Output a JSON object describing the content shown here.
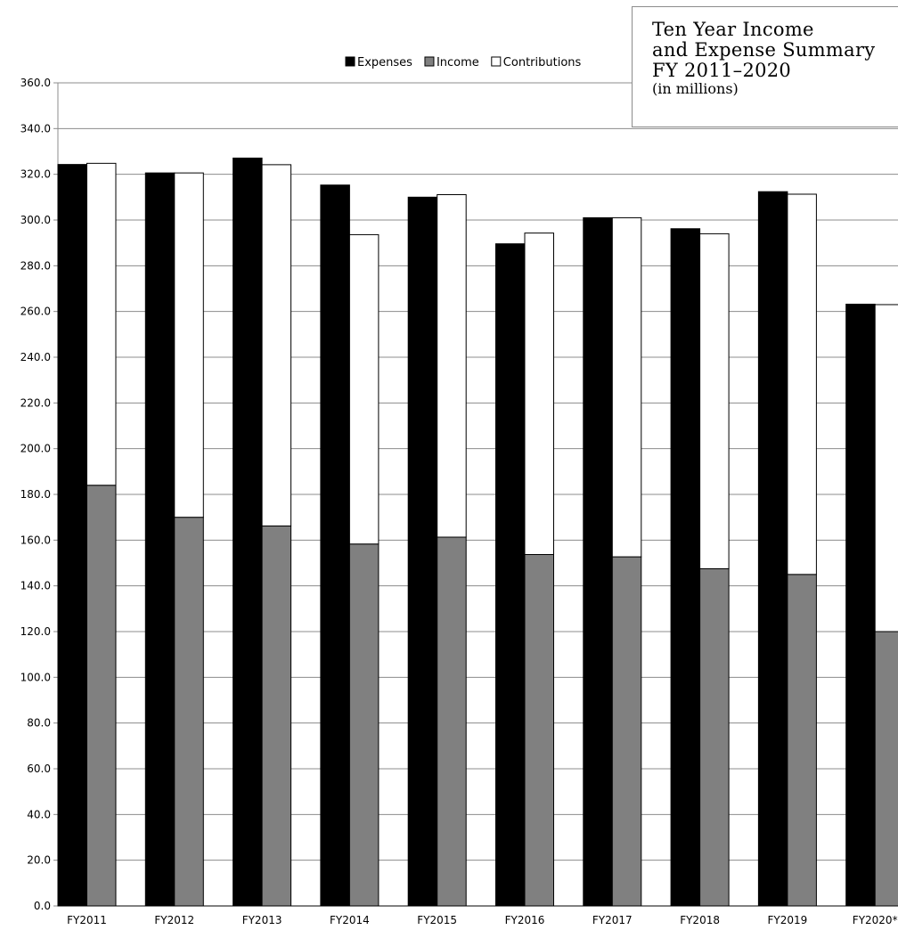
{
  "chart_data": {
    "type": "bar",
    "title": [
      "Ten Year Income",
      "and Expense Summary",
      "FY 2011–2020"
    ],
    "subtitle": "(in millions)",
    "categories": [
      "FY2011",
      "FY2012",
      "FY2013",
      "FY2014",
      "FY2015",
      "FY2016",
      "FY2017",
      "FY2018",
      "FY2019",
      "FY2020*"
    ],
    "series": [
      {
        "name": "Expenses",
        "color": "#000000",
        "stack": "a",
        "values": [
          324.3,
          320.6,
          327.1,
          315.3,
          310.0,
          289.6,
          301.0,
          296.2,
          312.4,
          263.2
        ]
      },
      {
        "name": "Income",
        "color": "#808080",
        "stack": "b",
        "values": [
          184.0,
          170.0,
          166.2,
          158.3,
          161.3,
          153.7,
          152.7,
          147.5,
          145.0,
          120.0
        ]
      },
      {
        "name": "Contributions",
        "color": "#ffffff",
        "stack": "b",
        "values": [
          140.8,
          150.6,
          158.0,
          135.3,
          149.8,
          140.6,
          148.3,
          146.5,
          166.3,
          143.0
        ]
      }
    ],
    "ylim": [
      0,
      360
    ],
    "y_ticks": [
      "0.0",
      "20.0",
      "40.0",
      "60.0",
      "80.0",
      "100.0",
      "120.0",
      "140.0",
      "160.0",
      "180.0",
      "200.0",
      "220.0",
      "240.0",
      "260.0",
      "280.0",
      "300.0",
      "320.0",
      "340.0",
      "360.0"
    ],
    "grid": true,
    "legend_position": "top"
  }
}
